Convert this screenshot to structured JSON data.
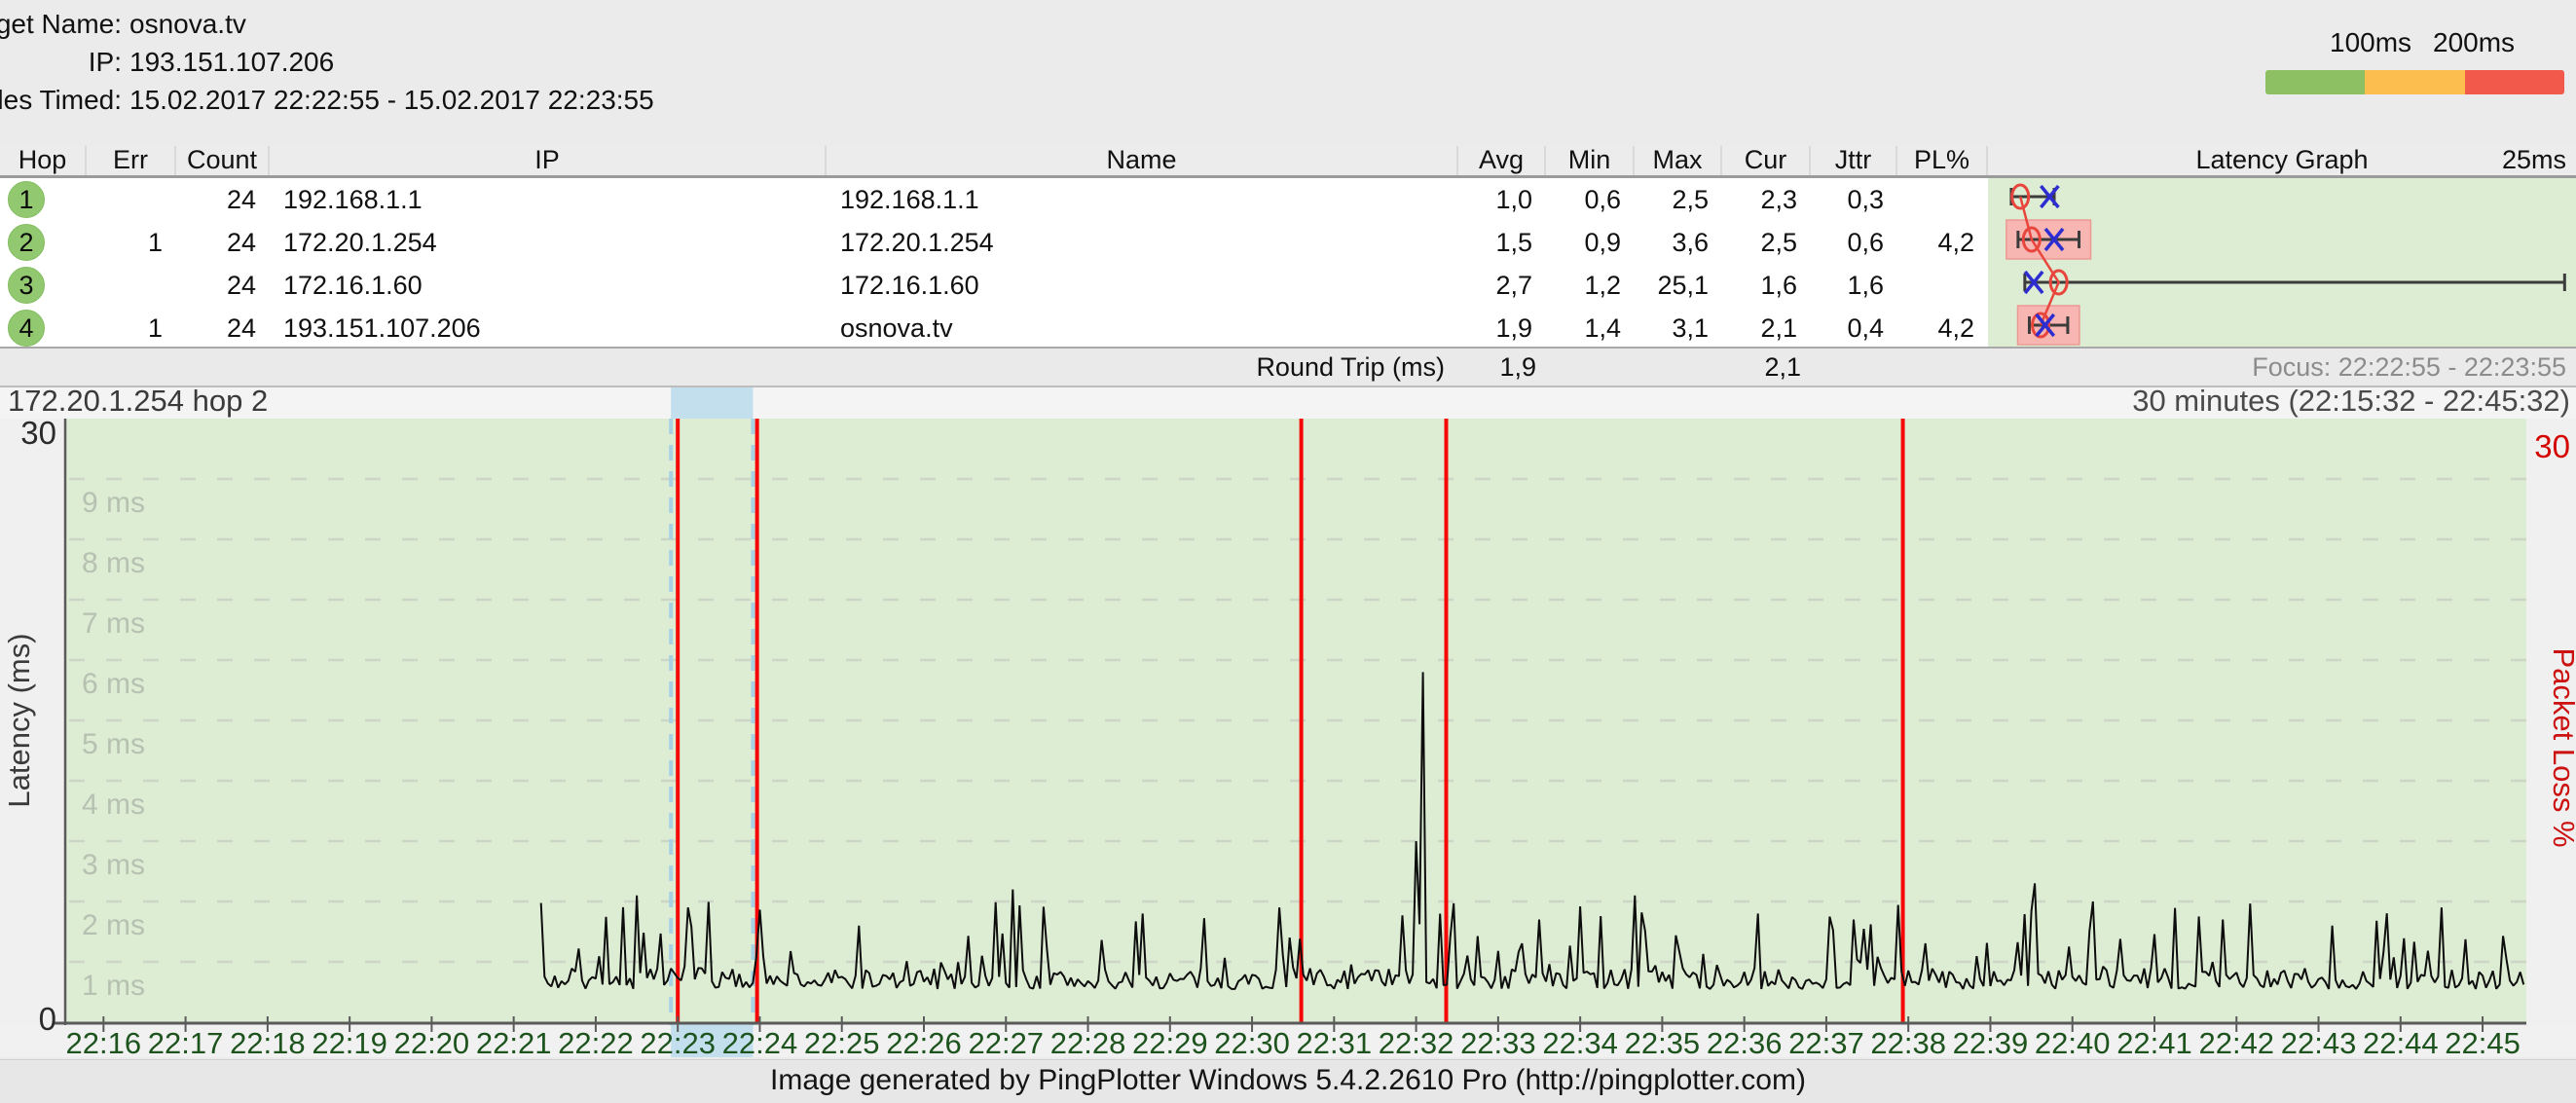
{
  "header": {
    "target_label": "Target Name:",
    "target_value": "osnova.tv",
    "ip_label": "IP:",
    "ip_value": "193.151.107.206",
    "samples_label": "Samples Timed:",
    "samples_value": "15.02.2017 22:22:55 - 15.02.2017 22:23:55",
    "legend": {
      "label_100": "100ms",
      "label_200": "200ms",
      "colors": [
        "#8dc063",
        "#fcbe4e",
        "#f2594b"
      ]
    }
  },
  "table": {
    "columns": [
      "Hop",
      "Err",
      "Count",
      "IP",
      "Name",
      "Avg",
      "Min",
      "Max",
      "Cur",
      "Jttr",
      "PL%",
      "Latency Graph"
    ],
    "latency_scale_label": "25ms",
    "latency_scale_max_ms": 25,
    "rows": [
      {
        "hop": "1",
        "err": "",
        "count": "24",
        "ip": "192.168.1.1",
        "name": "192.168.1.1",
        "avg": "1,0",
        "min": "0,6",
        "max": "2,5",
        "cur": "2,3",
        "jttr": "0,3",
        "pl": "",
        "graph": {
          "min": 0.6,
          "max": 2.5,
          "avg": 1.0,
          "cur": 2.3,
          "loss": false
        }
      },
      {
        "hop": "2",
        "err": "1",
        "count": "24",
        "ip": "172.20.1.254",
        "name": "172.20.1.254",
        "avg": "1,5",
        "min": "0,9",
        "max": "3,6",
        "cur": "2,5",
        "jttr": "0,6",
        "pl": "4,2",
        "graph": {
          "min": 0.9,
          "max": 3.6,
          "avg": 1.5,
          "cur": 2.5,
          "loss": true
        }
      },
      {
        "hop": "3",
        "err": "",
        "count": "24",
        "ip": "172.16.1.60",
        "name": "172.16.1.60",
        "avg": "2,7",
        "min": "1,2",
        "max": "25,1",
        "cur": "1,6",
        "jttr": "1,6",
        "pl": "",
        "graph": {
          "min": 1.2,
          "max": 25.1,
          "avg": 2.7,
          "cur": 1.6,
          "loss": false
        }
      },
      {
        "hop": "4",
        "err": "1",
        "count": "24",
        "ip": "193.151.107.206",
        "name": "osnova.tv",
        "avg": "1,9",
        "min": "1,4",
        "max": "3,1",
        "cur": "2,1",
        "jttr": "0,4",
        "pl": "4,2",
        "graph": {
          "min": 1.4,
          "max": 3.1,
          "avg": 1.9,
          "cur": 2.1,
          "loss": true
        }
      }
    ],
    "summary": {
      "label": "Round Trip (ms)",
      "avg": "1,9",
      "cur": "2,1",
      "focus": "Focus: 22:22:55 - 22:23:55"
    }
  },
  "timeline": {
    "title": "172.20.1.254 hop 2",
    "range_label": "30 minutes (22:15:32 - 22:45:32)",
    "left_axis_max": "30",
    "left_axis_zero": "0",
    "right_axis_max": "30",
    "left_axis_title": "Latency (ms)",
    "right_axis_title": "Packet Loss %",
    "grid_labels": [
      "9 ms",
      "8 ms",
      "7 ms",
      "6 ms",
      "5 ms",
      "4 ms",
      "3 ms",
      "2 ms",
      "1 ms"
    ],
    "x_labels": [
      "22:16",
      "22:17",
      "22:18",
      "22:19",
      "22:20",
      "22:21",
      "22:22",
      "22:23",
      "22:24",
      "22:25",
      "22:26",
      "22:27",
      "22:28",
      "22:29",
      "22:30",
      "22:31",
      "22:32",
      "22:33",
      "22:34",
      "22:35",
      "22:36",
      "22:37",
      "22:38",
      "22:39",
      "22:40",
      "22:41",
      "22:42",
      "22:43",
      "22:44",
      "22:45"
    ],
    "range_start": "22:15:32",
    "range_end": "22:45:32",
    "focus_start": "22:22:55",
    "focus_end": "22:23:55",
    "loss_events": [
      "22:23:00",
      "22:23:58",
      "22:30:36",
      "22:32:22",
      "22:37:56"
    ],
    "trace_start": "22:21:20",
    "sample_interval_s": 2.5
  },
  "footer": {
    "text": "Image generated by PingPlotter Windows 5.4.2.2610 Pro (http://pingplotter.com)"
  },
  "chart_data": {
    "type": "line",
    "title": "172.20.1.254 hop 2",
    "xlabel": "time",
    "ylabel": "Latency (ms)",
    "x_range": [
      "22:15:32",
      "22:45:32"
    ],
    "ylim": [
      0,
      10
    ],
    "right_axis": {
      "label": "Packet Loss %",
      "max": 30
    },
    "grid": true,
    "baseline_ms": [
      0.55,
      0.95
    ],
    "data_begins": "22:21:20",
    "spikes": [
      {
        "t": "22:22:30",
        "v": 2.1
      },
      {
        "t": "22:23:08",
        "v": 1.9
      },
      {
        "t": "22:25:12",
        "v": 1.6
      },
      {
        "t": "22:27:06",
        "v": 2.2
      },
      {
        "t": "22:28:40",
        "v": 1.8
      },
      {
        "t": "22:30:20",
        "v": 1.9
      },
      {
        "t": "22:31:59",
        "v": 3.0
      },
      {
        "t": "22:32:06",
        "v": 5.8
      },
      {
        "t": "22:33:30",
        "v": 1.7
      },
      {
        "t": "22:34:40",
        "v": 2.1
      },
      {
        "t": "22:36:10",
        "v": 1.8
      },
      {
        "t": "22:37:20",
        "v": 1.7
      },
      {
        "t": "22:39:32",
        "v": 2.3
      },
      {
        "t": "22:40:15",
        "v": 2.0
      },
      {
        "t": "22:41:50",
        "v": 1.7
      },
      {
        "t": "22:43:10",
        "v": 1.6
      },
      {
        "t": "22:44:30",
        "v": 1.9
      }
    ],
    "packet_loss_events": [
      "22:23:00",
      "22:23:58",
      "22:30:36",
      "22:32:22",
      "22:37:56"
    ],
    "colors": {
      "trace": "#0d0d0d",
      "loss_line": "#f50805",
      "focus_band": "#c3dfee",
      "plot_bg": "#ddedd4",
      "grid": "#ccd5c6",
      "x_label": "#1d531d"
    }
  }
}
